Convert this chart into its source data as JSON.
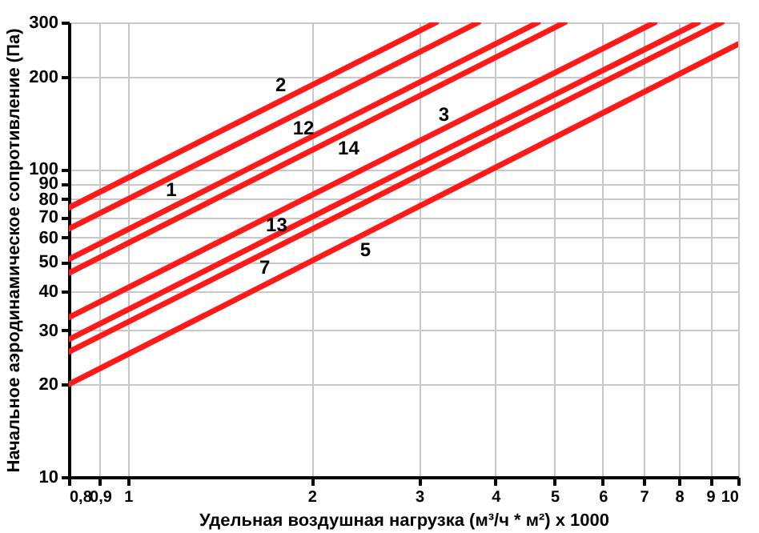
{
  "chart_data": {
    "type": "line",
    "xlabel": "Удельная воздушная нагрузка (м³/ч * м²) x 1000",
    "ylabel": "Начальное аэродинамическое сопротивление (Па)",
    "log": "xy",
    "grid": true,
    "legend": false,
    "marker": "none",
    "line_style": "solid",
    "xlim": [
      0.8,
      10
    ],
    "xticks": [
      {
        "value": 0.8,
        "label": "0,8"
      },
      {
        "value": 0.9,
        "label": "0,9"
      },
      1,
      2,
      3,
      4,
      5,
      6,
      7,
      8,
      9,
      10
    ],
    "ylim": [
      10,
      300
    ],
    "yticks": [
      10,
      20,
      30,
      40,
      50,
      60,
      70,
      80,
      90,
      100,
      200,
      300
    ],
    "series": [
      {
        "name": "2",
        "color": "#ff1a1a",
        "x": [
          0.8,
          3.2
        ],
        "values": [
          75,
          300
        ]
      },
      {
        "name": "1",
        "color": "#ff1a1a",
        "x": [
          0.8,
          3.75
        ],
        "values": [
          64,
          300
        ]
      },
      {
        "name": "12",
        "color": "#ff1a1a",
        "x": [
          0.8,
          4.7
        ],
        "values": [
          51,
          300
        ]
      },
      {
        "name": "14",
        "color": "#ff1a1a",
        "x": [
          0.8,
          5.2
        ],
        "values": [
          46,
          300
        ]
      },
      {
        "name": "3",
        "color": "#ff1a1a",
        "x": [
          0.8,
          7.3
        ],
        "values": [
          33,
          300
        ]
      },
      {
        "name": "13",
        "color": "#ff1a1a",
        "x": [
          0.8,
          8.6
        ],
        "values": [
          28,
          300
        ]
      },
      {
        "name": "7",
        "color": "#ff1a1a",
        "x": [
          0.8,
          9.4
        ],
        "values": [
          25.5,
          300
        ]
      },
      {
        "name": "5",
        "color": "#ff1a1a",
        "x": [
          0.8,
          10
        ],
        "values": [
          20,
          255
        ]
      }
    ]
  }
}
